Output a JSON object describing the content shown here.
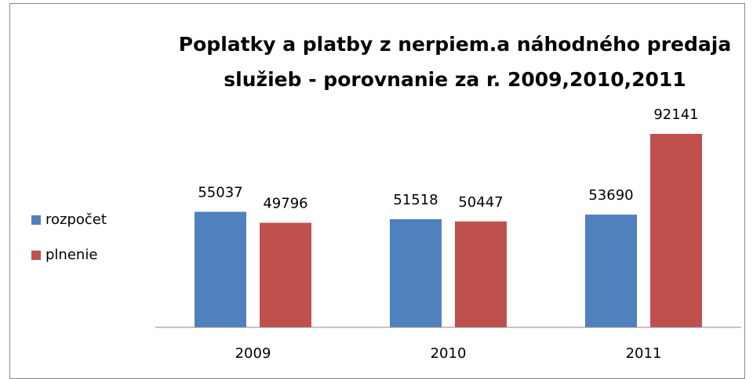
{
  "chart_data": {
    "type": "bar",
    "title": "Poplatky a platby z nerpiem.a náhodného predaja služieb - porovnanie za r. 2009,2010,2011",
    "categories": [
      "2009",
      "2010",
      "2011"
    ],
    "series": [
      {
        "name": "rozpočet",
        "color": "#4f81bd",
        "values": [
          55037,
          51518,
          53690
        ]
      },
      {
        "name": "plnenie",
        "color": "#c0504d",
        "values": [
          49796,
          50447,
          92141
        ]
      }
    ],
    "legend": "left"
  }
}
